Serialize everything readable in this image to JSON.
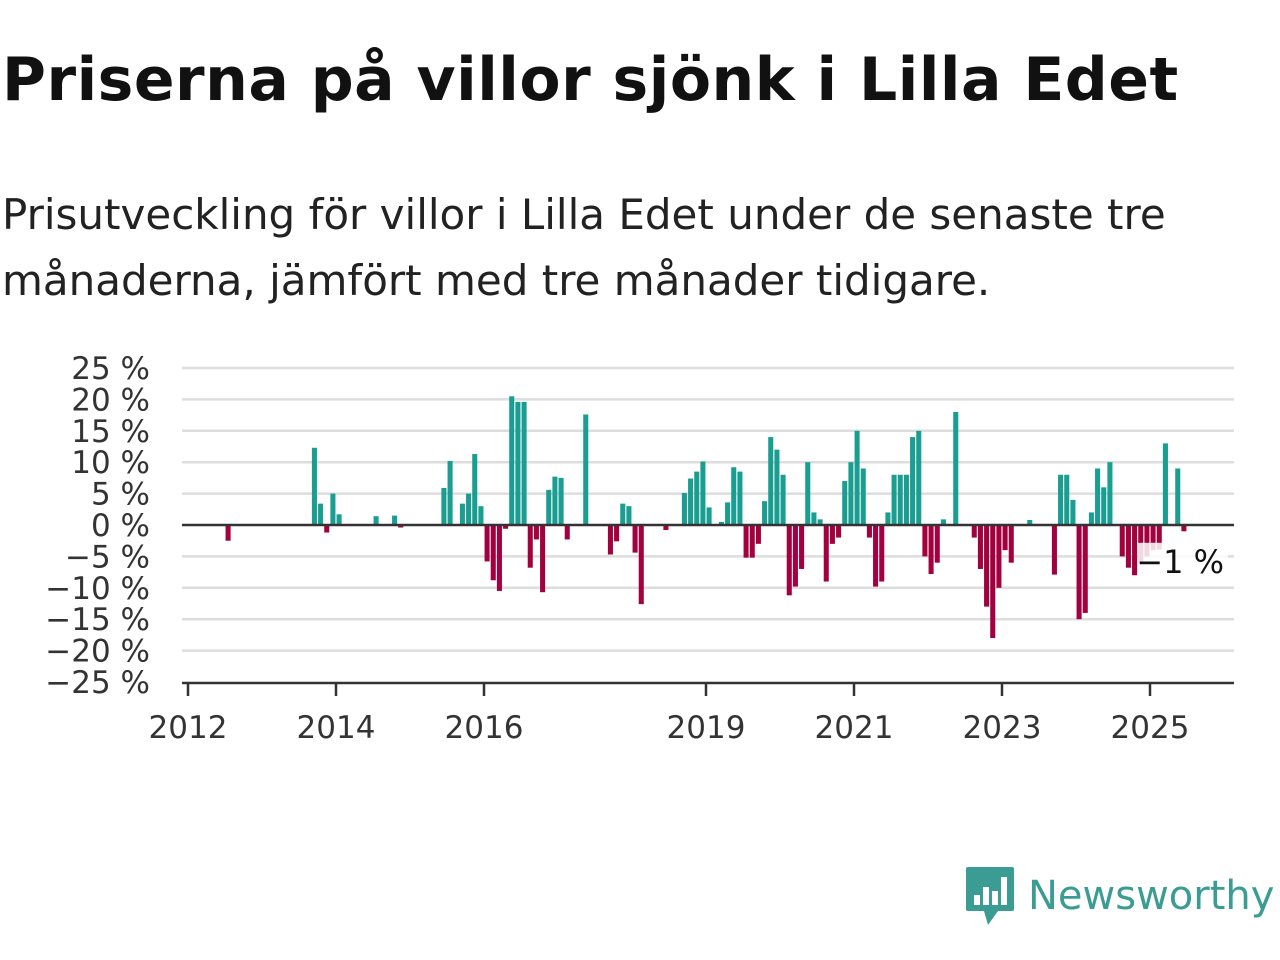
{
  "title": "Priserna på villor sjönk i Lilla Edet",
  "subtitle": "Prisutveckling för villor i Lilla Edet under de senaste tre månaderna, jämfört med tre månader tidigare.",
  "brand": {
    "name": "Newsworthy",
    "logo_icon": "bar-chart-speech-bubble-icon"
  },
  "colors": {
    "positive": "#1a9e92",
    "negative": "#a3003f",
    "grid": "#dddddd",
    "axis": "#333333",
    "brand": "#3a9c92"
  },
  "chart_data": {
    "type": "bar",
    "ylim": [
      -25,
      25
    ],
    "grid": true,
    "y_ticks": [
      {
        "value": 25,
        "label": "25 %"
      },
      {
        "value": 20,
        "label": "20 %"
      },
      {
        "value": 15,
        "label": "15 %"
      },
      {
        "value": 10,
        "label": "10 %"
      },
      {
        "value": 5,
        "label": "5 %"
      },
      {
        "value": 0,
        "label": "0 %"
      },
      {
        "value": -5,
        "label": "−5 %"
      },
      {
        "value": -10,
        "label": "−10 %"
      },
      {
        "value": -15,
        "label": "−15 %"
      },
      {
        "value": -20,
        "label": "−20 %"
      },
      {
        "value": -25,
        "label": "−25 %"
      }
    ],
    "x_ticks": [
      {
        "year": 2012,
        "label": "2012"
      },
      {
        "year": 2014,
        "label": "2014"
      },
      {
        "year": 2016,
        "label": "2016"
      },
      {
        "year": 2019,
        "label": "2019"
      },
      {
        "year": 2021,
        "label": "2021"
      },
      {
        "year": 2023,
        "label": "2023"
      },
      {
        "year": 2025,
        "label": "2025"
      }
    ],
    "xlim": [
      "2012-01",
      "2025-12"
    ],
    "last_value_label": "−1 %",
    "points": [
      {
        "date": "2012-07",
        "value": -2.5
      },
      {
        "date": "2013-09",
        "value": 12.3
      },
      {
        "date": "2013-10",
        "value": 3.4
      },
      {
        "date": "2013-11",
        "value": -1.2
      },
      {
        "date": "2013-12",
        "value": 5.0
      },
      {
        "date": "2014-01",
        "value": 1.7
      },
      {
        "date": "2014-07",
        "value": 1.4
      },
      {
        "date": "2014-10",
        "value": 1.5
      },
      {
        "date": "2014-11",
        "value": -0.4
      },
      {
        "date": "2015-06",
        "value": 5.9
      },
      {
        "date": "2015-07",
        "value": 10.2
      },
      {
        "date": "2015-09",
        "value": 3.4
      },
      {
        "date": "2015-10",
        "value": 5.0
      },
      {
        "date": "2015-11",
        "value": 11.3
      },
      {
        "date": "2015-12",
        "value": 3.0
      },
      {
        "date": "2016-01",
        "value": -5.8
      },
      {
        "date": "2016-02",
        "value": -8.8
      },
      {
        "date": "2016-03",
        "value": -10.5
      },
      {
        "date": "2016-04",
        "value": -0.6
      },
      {
        "date": "2016-05",
        "value": 20.5
      },
      {
        "date": "2016-06",
        "value": 19.6
      },
      {
        "date": "2016-07",
        "value": 19.6
      },
      {
        "date": "2016-08",
        "value": -6.8
      },
      {
        "date": "2016-09",
        "value": -2.3
      },
      {
        "date": "2016-10",
        "value": -10.7
      },
      {
        "date": "2016-11",
        "value": 5.6
      },
      {
        "date": "2016-12",
        "value": 7.7
      },
      {
        "date": "2017-01",
        "value": 7.5
      },
      {
        "date": "2017-02",
        "value": -2.3
      },
      {
        "date": "2017-05",
        "value": 17.6
      },
      {
        "date": "2017-09",
        "value": -4.7
      },
      {
        "date": "2017-10",
        "value": -2.6
      },
      {
        "date": "2017-11",
        "value": 3.4
      },
      {
        "date": "2017-12",
        "value": 3.0
      },
      {
        "date": "2018-01",
        "value": -4.4
      },
      {
        "date": "2018-02",
        "value": -12.6
      },
      {
        "date": "2018-06",
        "value": -0.8
      },
      {
        "date": "2018-09",
        "value": 5.1
      },
      {
        "date": "2018-10",
        "value": 7.4
      },
      {
        "date": "2018-11",
        "value": 8.5
      },
      {
        "date": "2018-12",
        "value": 10.1
      },
      {
        "date": "2019-01",
        "value": 2.8
      },
      {
        "date": "2019-03",
        "value": 0.5
      },
      {
        "date": "2019-04",
        "value": 3.6
      },
      {
        "date": "2019-05",
        "value": 9.2
      },
      {
        "date": "2019-06",
        "value": 8.5
      },
      {
        "date": "2019-07",
        "value": -5.2
      },
      {
        "date": "2019-08",
        "value": -5.2
      },
      {
        "date": "2019-09",
        "value": -3.0
      },
      {
        "date": "2019-10",
        "value": 3.8
      },
      {
        "date": "2019-11",
        "value": 14.0
      },
      {
        "date": "2019-12",
        "value": 12.0
      },
      {
        "date": "2020-01",
        "value": 8.0
      },
      {
        "date": "2020-02",
        "value": -11.2
      },
      {
        "date": "2020-03",
        "value": -9.8
      },
      {
        "date": "2020-04",
        "value": -7.0
      },
      {
        "date": "2020-05",
        "value": 10.0
      },
      {
        "date": "2020-06",
        "value": 2.0
      },
      {
        "date": "2020-07",
        "value": 0.9
      },
      {
        "date": "2020-08",
        "value": -9.0
      },
      {
        "date": "2020-09",
        "value": -3.0
      },
      {
        "date": "2020-10",
        "value": -2.0
      },
      {
        "date": "2020-11",
        "value": 7.0
      },
      {
        "date": "2020-12",
        "value": 10.0
      },
      {
        "date": "2021-01",
        "value": 15.0
      },
      {
        "date": "2021-02",
        "value": 9.0
      },
      {
        "date": "2021-03",
        "value": -2.0
      },
      {
        "date": "2021-04",
        "value": -9.8
      },
      {
        "date": "2021-05",
        "value": -9.0
      },
      {
        "date": "2021-06",
        "value": 2.0
      },
      {
        "date": "2021-07",
        "value": 8.0
      },
      {
        "date": "2021-08",
        "value": 8.0
      },
      {
        "date": "2021-09",
        "value": 8.0
      },
      {
        "date": "2021-10",
        "value": 14.0
      },
      {
        "date": "2021-11",
        "value": 15.0
      },
      {
        "date": "2021-12",
        "value": -5.0
      },
      {
        "date": "2022-01",
        "value": -7.8
      },
      {
        "date": "2022-02",
        "value": -6.0
      },
      {
        "date": "2022-03",
        "value": 0.9
      },
      {
        "date": "2022-05",
        "value": 18.0
      },
      {
        "date": "2022-08",
        "value": -2.0
      },
      {
        "date": "2022-09",
        "value": -7.0
      },
      {
        "date": "2022-10",
        "value": -13.0
      },
      {
        "date": "2022-11",
        "value": -18.0
      },
      {
        "date": "2022-12",
        "value": -10.0
      },
      {
        "date": "2023-01",
        "value": -4.0
      },
      {
        "date": "2023-02",
        "value": -6.0
      },
      {
        "date": "2023-05",
        "value": 0.8
      },
      {
        "date": "2023-09",
        "value": -7.9
      },
      {
        "date": "2023-10",
        "value": 8.0
      },
      {
        "date": "2023-11",
        "value": 8.0
      },
      {
        "date": "2023-12",
        "value": 4.0
      },
      {
        "date": "2024-01",
        "value": -15.0
      },
      {
        "date": "2024-02",
        "value": -14.0
      },
      {
        "date": "2024-03",
        "value": 2.0
      },
      {
        "date": "2024-04",
        "value": 9.0
      },
      {
        "date": "2024-05",
        "value": 6.0
      },
      {
        "date": "2024-06",
        "value": 10.0
      },
      {
        "date": "2024-08",
        "value": -5.0
      },
      {
        "date": "2024-09",
        "value": -6.8
      },
      {
        "date": "2024-10",
        "value": -8.0
      },
      {
        "date": "2024-11",
        "value": -6.0
      },
      {
        "date": "2024-12",
        "value": -5.0
      },
      {
        "date": "2025-01",
        "value": -4.0
      },
      {
        "date": "2025-02",
        "value": -3.9
      },
      {
        "date": "2025-03",
        "value": 13.0
      },
      {
        "date": "2025-05",
        "value": 9.0
      },
      {
        "date": "2025-06",
        "value": -1.0
      }
    ]
  }
}
